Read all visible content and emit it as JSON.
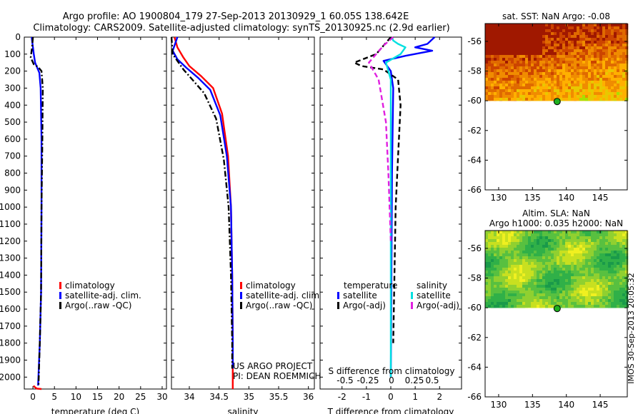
{
  "title_line1": "Argo profile: AO 1900804_179 27-Sep-2013 20130929_1 60.05S 138.642E",
  "title_line2": "Climatology: CARS2009. Satellite-adjusted climatology: synTS_20130925.nc (2.9d earlier)",
  "side_stamp": "IMOS 30-Sep-2013 20:05:32",
  "colors": {
    "climatology": "#ff0000",
    "satellite": "#0000ff",
    "argo": "#000000",
    "sat_salinity": "#00e0e0",
    "argo_salinity": "#e020e0"
  },
  "chart_data": [
    {
      "type": "line",
      "id": "temperature",
      "xlabel": "temperature (deg C)",
      "xlim": [
        -2,
        31
      ],
      "ylim": [
        0,
        2070
      ],
      "x_ticks": [
        0,
        5,
        10,
        15,
        20,
        25,
        30
      ],
      "y_ticks": [
        0,
        100,
        200,
        300,
        400,
        500,
        600,
        700,
        800,
        900,
        1000,
        1100,
        1200,
        1300,
        1400,
        1500,
        1600,
        1700,
        1800,
        1900,
        2000
      ],
      "legend": [
        "climatology",
        "satellite-adj. clim.",
        "Argo(..raw -QC)"
      ],
      "series": [
        {
          "name": "climatology",
          "color": "#ff0000",
          "style": "solid",
          "x": [
            0.2,
            0.3,
            0.5,
            0.7,
            1.0,
            2.0
          ],
          "y": [
            2050,
            2056,
            2060,
            2064,
            2068,
            2070
          ]
        },
        {
          "name": "satellite-adj. clim.",
          "color": "#0000ff",
          "style": "solid",
          "x": [
            -0.3,
            0.0,
            0.2,
            0.5,
            1.0,
            1.5,
            1.8,
            2.0,
            2.0,
            1.9,
            1.6,
            1.2
          ],
          "y": [
            0,
            60,
            100,
            150,
            180,
            210,
            300,
            600,
            1000,
            1500,
            1800,
            2050
          ]
        },
        {
          "name": "Argo(..raw -QC)",
          "color": "#000000",
          "style": "dashdot",
          "x": [
            0.0,
            -0.2,
            -0.5,
            0.2,
            1.2,
            2.0,
            2.3,
            2.2,
            2.0,
            1.9,
            1.6,
            1.3
          ],
          "y": [
            0,
            60,
            120,
            160,
            175,
            200,
            300,
            600,
            1000,
            1500,
            1800,
            2050
          ]
        }
      ]
    },
    {
      "type": "line",
      "id": "salinity",
      "xlabel": "salinity",
      "xlim": [
        33.7,
        36.1
      ],
      "ylim": [
        0,
        2070
      ],
      "x_ticks": [
        34,
        34.5,
        35,
        35.5,
        36
      ],
      "legend": [
        "climatology",
        "satellite-adj. clim.",
        "Argo(..raw -QC)"
      ],
      "annotation": [
        "US ARGO PROJECT",
        "PI: DEAN ROEMMICH"
      ],
      "series": [
        {
          "name": "climatology",
          "color": "#ff0000",
          "style": "solid",
          "x": [
            33.75,
            33.8,
            33.9,
            34.0,
            34.2,
            34.4,
            34.55,
            34.65,
            34.7,
            34.72,
            34.73,
            34.73
          ],
          "y": [
            0,
            60,
            120,
            170,
            230,
            300,
            450,
            700,
            1000,
            1400,
            1800,
            2070
          ]
        },
        {
          "name": "satellite-adj. clim.",
          "color": "#0000ff",
          "style": "solid",
          "x": [
            33.8,
            33.72,
            33.8,
            33.95,
            34.15,
            34.35,
            34.52,
            34.63,
            34.7,
            34.72,
            34.73,
            34.73
          ],
          "y": [
            0,
            80,
            130,
            180,
            240,
            310,
            460,
            700,
            1000,
            1400,
            1800,
            1950
          ]
        },
        {
          "name": "Argo(..raw -QC)",
          "color": "#000000",
          "style": "dashdot",
          "x": [
            33.7,
            33.72,
            33.8,
            33.9,
            34.05,
            34.25,
            34.45,
            34.58,
            34.66,
            34.7,
            34.72,
            34.72
          ],
          "y": [
            0,
            100,
            140,
            190,
            250,
            330,
            480,
            720,
            1000,
            1400,
            1800,
            1950
          ]
        }
      ]
    },
    {
      "type": "line",
      "id": "difference",
      "xlabel": "T difference from climatology",
      "x2label": "S difference from climatology",
      "xlim": [
        -2.9,
        2.9
      ],
      "ylim": [
        0,
        2070
      ],
      "x_ticks": [
        -2,
        -1,
        0,
        1,
        2
      ],
      "s_ticks": [
        "-0.5",
        "-0.25",
        "0",
        "0.25",
        "0.5"
      ],
      "legend_left_title": "temperature",
      "legend_right_title": "salinity",
      "legend": [
        "satellite",
        "Argo(-adj)",
        "satellite",
        "Argo(-adj)"
      ],
      "series": [
        {
          "name": "temperature satellite",
          "color": "#0000ff",
          "style": "solid",
          "x": [
            1.8,
            1.5,
            1.0,
            1.7,
            0.6,
            -0.3,
            0.0,
            0.1,
            0.05,
            0.0
          ],
          "y": [
            0,
            40,
            60,
            80,
            110,
            140,
            200,
            300,
            800,
            2000
          ]
        },
        {
          "name": "temperature Argo(-adj)",
          "color": "#000000",
          "style": "dashed",
          "x": [
            0.0,
            -0.3,
            -0.6,
            -1.5,
            -1.2,
            -0.3,
            0.3,
            0.4,
            0.3,
            0.2,
            0.1
          ],
          "y": [
            0,
            50,
            100,
            150,
            170,
            190,
            250,
            400,
            700,
            1000,
            1800
          ]
        },
        {
          "name": "salinity satellite",
          "color": "#00e0e0",
          "style": "solid",
          "x": [
            0.05,
            0.1,
            0.3,
            0.6,
            0.4,
            -0.2,
            0.0,
            0.0,
            0.0
          ],
          "y": [
            0,
            20,
            40,
            60,
            100,
            150,
            250,
            800,
            2000
          ]
        },
        {
          "name": "salinity Argo(-adj)",
          "color": "#e020e0",
          "style": "dashed",
          "x": [
            0.1,
            -0.3,
            -0.6,
            -0.9,
            -0.5,
            -0.2,
            -0.1,
            0.0
          ],
          "y": [
            0,
            50,
            100,
            150,
            250,
            500,
            800,
            1200
          ]
        }
      ]
    },
    {
      "type": "heatmap",
      "id": "sst-map",
      "title": "sat. SST: NaN Argo: -0.08",
      "xlim": [
        128,
        149
      ],
      "ylim": [
        -66,
        -54.8
      ],
      "x_ticks": [
        130,
        135,
        140,
        145
      ],
      "y_ticks": [
        -56,
        -58,
        -60,
        -62,
        -64,
        -66
      ],
      "data_south_limit": -60,
      "argo_point": [
        138.64,
        -60.05
      ],
      "palette": [
        "#a01800",
        "#cc4400",
        "#e06a00",
        "#f08c00",
        "#ffb000",
        "#e8c800",
        "#a8e000",
        "#40c040"
      ]
    },
    {
      "type": "heatmap",
      "id": "sla-map",
      "title_line1": "Altim. SLA: NaN",
      "title_line2": "Argo h1000: 0.035 h2000: NaN",
      "xlim": [
        128,
        149
      ],
      "ylim": [
        -66,
        -54.8
      ],
      "x_ticks": [
        130,
        135,
        140,
        145
      ],
      "y_ticks": [
        -56,
        -58,
        -60,
        -62,
        -64,
        -66
      ],
      "data_south_limit": -60,
      "argo_point": [
        138.64,
        -60.05
      ],
      "palette": [
        "#1a9a4a",
        "#30b048",
        "#58c040",
        "#90d030",
        "#c8e020",
        "#f0f020"
      ]
    }
  ]
}
